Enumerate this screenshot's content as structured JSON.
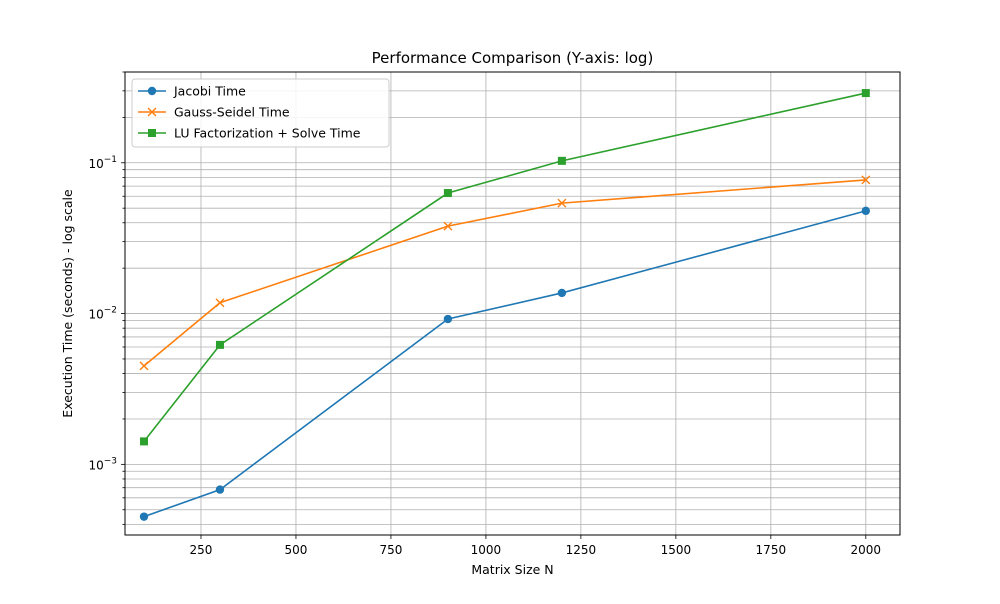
{
  "chart_data": {
    "type": "line",
    "title": "Performance Comparison (Y-axis: log)",
    "xlabel": "Matrix Size N",
    "ylabel": "Execution Time (seconds) - log scale",
    "x": [
      100,
      300,
      900,
      1200,
      2000
    ],
    "xlim": [
      50,
      2090
    ],
    "ylim": [
      0.00034,
      0.4
    ],
    "yscale": "log",
    "x_ticks": [
      250,
      500,
      750,
      1000,
      1250,
      1500,
      1750,
      2000
    ],
    "x_tick_labels": [
      "250",
      "500",
      "750",
      "1000",
      "1250",
      "1500",
      "1750",
      "2000"
    ],
    "y_ticks": [
      0.001,
      0.01,
      0.1
    ],
    "y_tick_labels": [
      "10",
      "10",
      "10"
    ],
    "y_tick_exponents": [
      "−3",
      "−2",
      "−1"
    ],
    "grid": true,
    "grid_minor": true,
    "legend_position": "top-left",
    "series": [
      {
        "name": "Jacobi Time",
        "values": [
          0.00045,
          0.00068,
          0.0092,
          0.0137,
          0.048
        ],
        "color": "#1f77b4",
        "marker": "circle"
      },
      {
        "name": "Gauss-Seidel Time",
        "values": [
          0.0045,
          0.0118,
          0.038,
          0.054,
          0.077
        ],
        "color": "#ff7f0e",
        "marker": "x"
      },
      {
        "name": "LU Factorization + Solve Time",
        "values": [
          0.00142,
          0.0062,
          0.063,
          0.103,
          0.29
        ],
        "color": "#2ca02c",
        "marker": "square"
      }
    ]
  }
}
